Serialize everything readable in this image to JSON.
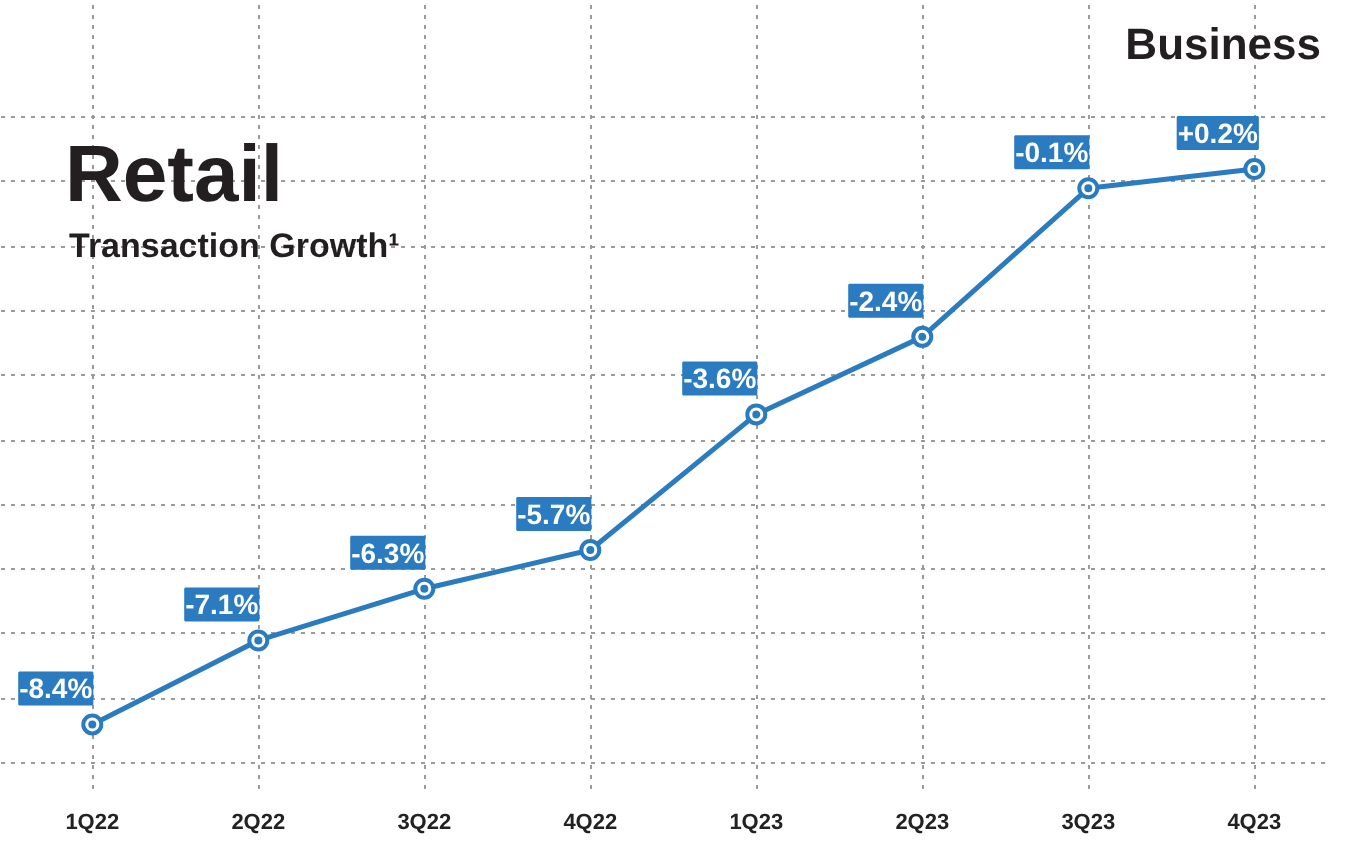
{
  "chart_data": {
    "type": "line",
    "title": "Retail",
    "subtitle": "Transaction Growth¹",
    "annotations": [
      "Business"
    ],
    "categories": [
      "1Q22",
      "2Q22",
      "3Q22",
      "4Q22",
      "1Q23",
      "2Q23",
      "3Q23",
      "4Q23"
    ],
    "series": [
      {
        "color": "#2a7bc0",
        "values": [
          -8.4,
          -7.1,
          -6.3,
          -5.7,
          -3.6,
          -2.4,
          -0.1,
          0.2
        ],
        "value_labels": [
          "-8.4%",
          "-7.1%",
          "-6.3%",
          "-5.7%",
          "-3.6%",
          "-2.4%",
          "-0.1%",
          "+0.2%"
        ]
      }
    ],
    "ylim": [
      -9.4,
      2.8
    ],
    "yticks": [
      {
        "value": -9,
        "label": null
      },
      {
        "value": -8,
        "label": null
      },
      {
        "value": -7,
        "label": null
      },
      {
        "value": -6,
        "label": null
      },
      {
        "value": -5,
        "label": null
      },
      {
        "value": -4,
        "label": null
      },
      {
        "value": -3,
        "label": null
      },
      {
        "value": -2,
        "label": null
      },
      {
        "value": -1,
        "label": null
      },
      {
        "value": 0,
        "label": null
      },
      {
        "value": 1,
        "label": null
      }
    ],
    "tick_labels": "x",
    "grid": true,
    "marker": "circle",
    "line_style": "solid"
  }
}
